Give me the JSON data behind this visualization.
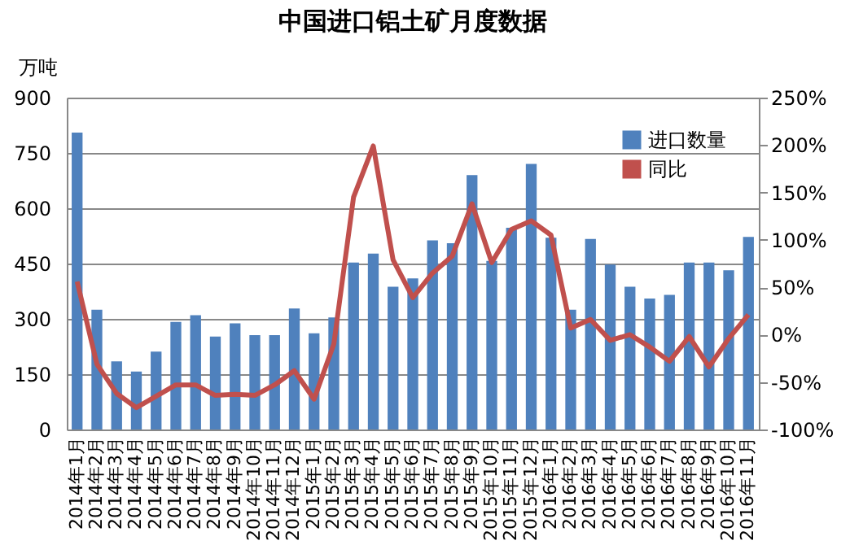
{
  "chart_data": {
    "type": "bar",
    "title": "中国进口铝土矿月度数据",
    "ylabel": "万吨",
    "categories": [
      "2014年1月",
      "2014年2月",
      "2014年3月",
      "2014年4月",
      "2014年5月",
      "2014年6月",
      "2014年7月",
      "2014年8月",
      "2014年9月",
      "2014年10月",
      "2014年11月",
      "2014年12月",
      "2015年1月",
      "2015年2月",
      "2015年3月",
      "2015年4月",
      "2015年5月",
      "2015年6月",
      "2015年7月",
      "2015年8月",
      "2015年9月",
      "2015年10月",
      "2015年11月",
      "2015年12月",
      "2016年1月",
      "2016年2月",
      "2016年3月",
      "2016年4月",
      "2016年5月",
      "2016年6月",
      "2016年7月",
      "2016年8月",
      "2016年9月",
      "2016年10月",
      "2016年11月"
    ],
    "series": [
      {
        "name": "进口数量",
        "color": "#4f81bd",
        "values": [
          805,
          325,
          185,
          157,
          211,
          292,
          310,
          252,
          288,
          256,
          256,
          328,
          261,
          304,
          453,
          477,
          387,
          410,
          513,
          505,
          690,
          457,
          547,
          720,
          520,
          325,
          517,
          447,
          387,
          355,
          365,
          453,
          453,
          432,
          522
        ]
      },
      {
        "name": "同比",
        "type": "line",
        "axis": "y2",
        "color": "#c0504d",
        "values": [
          56,
          -31,
          -62,
          -77,
          -65,
          -53,
          -53,
          -64,
          -63,
          -64,
          -53,
          -38,
          -68,
          -10,
          145,
          199,
          79,
          39,
          65,
          83,
          138,
          76,
          111,
          120,
          105,
          7,
          16,
          -6,
          0,
          -13,
          -28,
          -2,
          -34,
          -4,
          21
        ]
      }
    ],
    "ylim": [
      0,
      900
    ],
    "yticks": [
      0,
      150,
      300,
      450,
      600,
      750,
      900
    ],
    "y2lim": [
      -100,
      250
    ],
    "y2ticks": [
      {
        "value": -100,
        "label": "-100%"
      },
      {
        "value": -50,
        "label": "-50%"
      },
      {
        "value": 0,
        "label": "0%"
      },
      {
        "value": 50,
        "label": "50%"
      },
      {
        "value": 100,
        "label": "100%"
      },
      {
        "value": 150,
        "label": "150%"
      },
      {
        "value": 200,
        "label": "200%"
      },
      {
        "value": 250,
        "label": "250%"
      }
    ],
    "grid": "y",
    "legend": "top right",
    "marker": "none",
    "line_style": "solid"
  }
}
